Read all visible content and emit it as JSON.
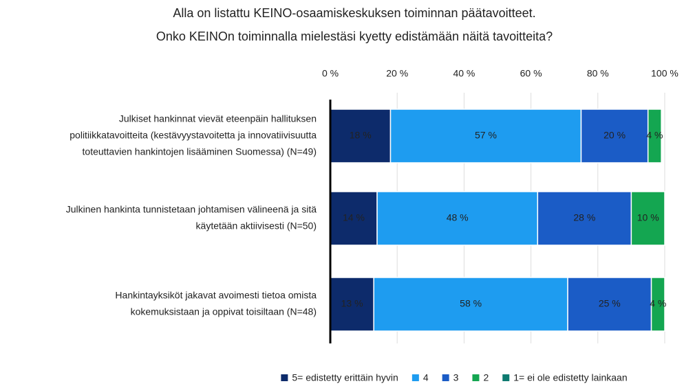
{
  "chart_data": {
    "type": "stacked_bar_horizontal",
    "title": [
      "Alla on listattu KEINO-osaamiskeskuksen toiminnan päätavoitteet.",
      "Onko KEINOn toiminnalla mielestäsi kyetty edistämään näitä tavoitteita?"
    ],
    "categories": [
      [
        "Julkiset hankinnat vievät eteenpäin hallituksen",
        "politiikkatavoitteita (kestävyystavoitetta ja innovatiivisuutta",
        "toteuttavien hankintojen lisääminen Suomessa) (N=49)"
      ],
      [
        "Julkinen hankinta tunnistetaan johtamisen välineenä ja sitä",
        "käytetään aktiivisesti (N=50)"
      ],
      [
        "Hankintayksiköt jakavat avoimesti tietoa omista",
        "kokemuksistaan ja oppivat toisiltaan (N=48)"
      ]
    ],
    "series": [
      {
        "name": "5= edistetty erittäin hyvin",
        "color": "#0d2b6b",
        "values": [
          18,
          14,
          13
        ],
        "value_labels": [
          "18 %",
          "14 %",
          "13 %"
        ]
      },
      {
        "name": "4",
        "color": "#1e9cf0",
        "values": [
          57,
          48,
          58
        ],
        "value_labels": [
          "57 %",
          "48 %",
          "58 %"
        ]
      },
      {
        "name": "3",
        "color": "#1b5cc6",
        "values": [
          20,
          28,
          25
        ],
        "value_labels": [
          "20 %",
          "28 %",
          "25 %"
        ]
      },
      {
        "name": "2",
        "color": "#14a651",
        "values": [
          4,
          10,
          4
        ],
        "value_labels": [
          "4 %",
          "10 %",
          "4 %"
        ]
      },
      {
        "name": "1= ei ole edistetty lainkaan",
        "color": "#0e7a70",
        "values": [
          0,
          0,
          0
        ],
        "value_labels": [
          null,
          null,
          null
        ]
      }
    ],
    "xlim": [
      0,
      100
    ],
    "xticks": [
      {
        "value": 0,
        "label": "0 %"
      },
      {
        "value": 20,
        "label": "20 %"
      },
      {
        "value": 40,
        "label": "40 %"
      },
      {
        "value": 60,
        "label": "60 %"
      },
      {
        "value": 80,
        "label": "80 %"
      },
      {
        "value": 100,
        "label": "100 %"
      }
    ],
    "grid": true,
    "legend": "bottom"
  }
}
